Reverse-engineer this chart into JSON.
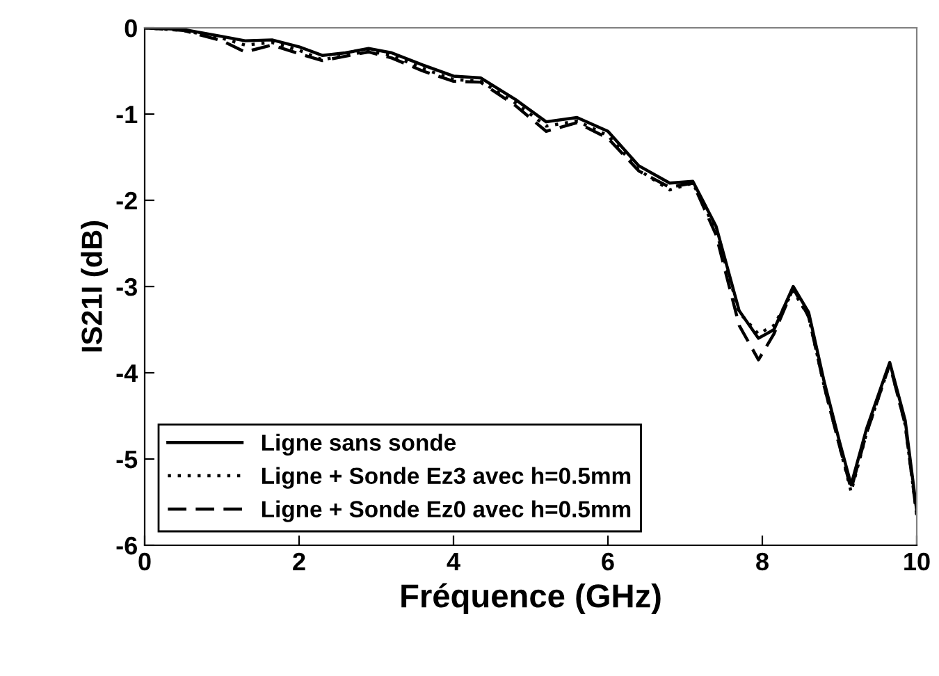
{
  "chart_data": {
    "type": "line",
    "xlabel": "Fréquence (GHz)",
    "ylabel": "IS21I (dB)",
    "x": [
      0,
      0.5,
      1.0,
      1.3,
      1.65,
      2.0,
      2.3,
      2.6,
      2.9,
      3.2,
      3.6,
      4.0,
      4.35,
      4.8,
      5.2,
      5.6,
      6.0,
      6.4,
      6.8,
      7.1,
      7.4,
      7.7,
      7.95,
      8.15,
      8.4,
      8.6,
      8.8,
      9.0,
      9.15,
      9.35,
      9.65,
      9.85,
      10
    ],
    "series": [
      {
        "name": "Ligne sans sonde",
        "color": "#000000",
        "line_style": "solid",
        "values": [
          0,
          -0.02,
          -0.1,
          -0.15,
          -0.14,
          -0.22,
          -0.32,
          -0.29,
          -0.24,
          -0.29,
          -0.43,
          -0.56,
          -0.58,
          -0.83,
          -1.09,
          -1.04,
          -1.2,
          -1.6,
          -1.8,
          -1.78,
          -2.3,
          -3.28,
          -3.6,
          -3.5,
          -3.0,
          -3.3,
          -4.1,
          -4.8,
          -5.3,
          -4.65,
          -3.88,
          -4.55,
          -5.6
        ]
      },
      {
        "name": "Ligne + Sonde Ez3 avec h=0.5mm",
        "color": "#000000",
        "line_style": "dotted",
        "values": [
          0,
          -0.03,
          -0.12,
          -0.2,
          -0.17,
          -0.26,
          -0.37,
          -0.32,
          -0.27,
          -0.32,
          -0.47,
          -0.6,
          -0.62,
          -0.87,
          -1.14,
          -1.08,
          -1.25,
          -1.65,
          -1.88,
          -1.8,
          -2.35,
          -3.3,
          -3.55,
          -3.45,
          -3.05,
          -3.35,
          -4.15,
          -4.85,
          -5.38,
          -4.7,
          -3.9,
          -4.6,
          -5.65
        ]
      },
      {
        "name": "Ligne + Sonde Ez0 avec h=0.5mm",
        "color": "#000000",
        "line_style": "dashed",
        "values": [
          0,
          -0.03,
          -0.15,
          -0.28,
          -0.2,
          -0.3,
          -0.38,
          -0.33,
          -0.28,
          -0.35,
          -0.5,
          -0.62,
          -0.63,
          -0.9,
          -1.2,
          -1.1,
          -1.28,
          -1.66,
          -1.85,
          -1.8,
          -2.4,
          -3.45,
          -3.85,
          -3.55,
          -3.02,
          -3.35,
          -4.15,
          -4.85,
          -5.35,
          -4.7,
          -3.9,
          -4.6,
          -5.65
        ]
      }
    ],
    "xlim": [
      0,
      10
    ],
    "ylim": [
      -6,
      0
    ],
    "xticks": [
      0,
      2,
      4,
      6,
      8,
      10
    ],
    "yticks": [
      -6,
      -5,
      -4,
      -3,
      -2,
      -1,
      0
    ],
    "grid": false,
    "legend": "bottom left",
    "marker": "none"
  }
}
